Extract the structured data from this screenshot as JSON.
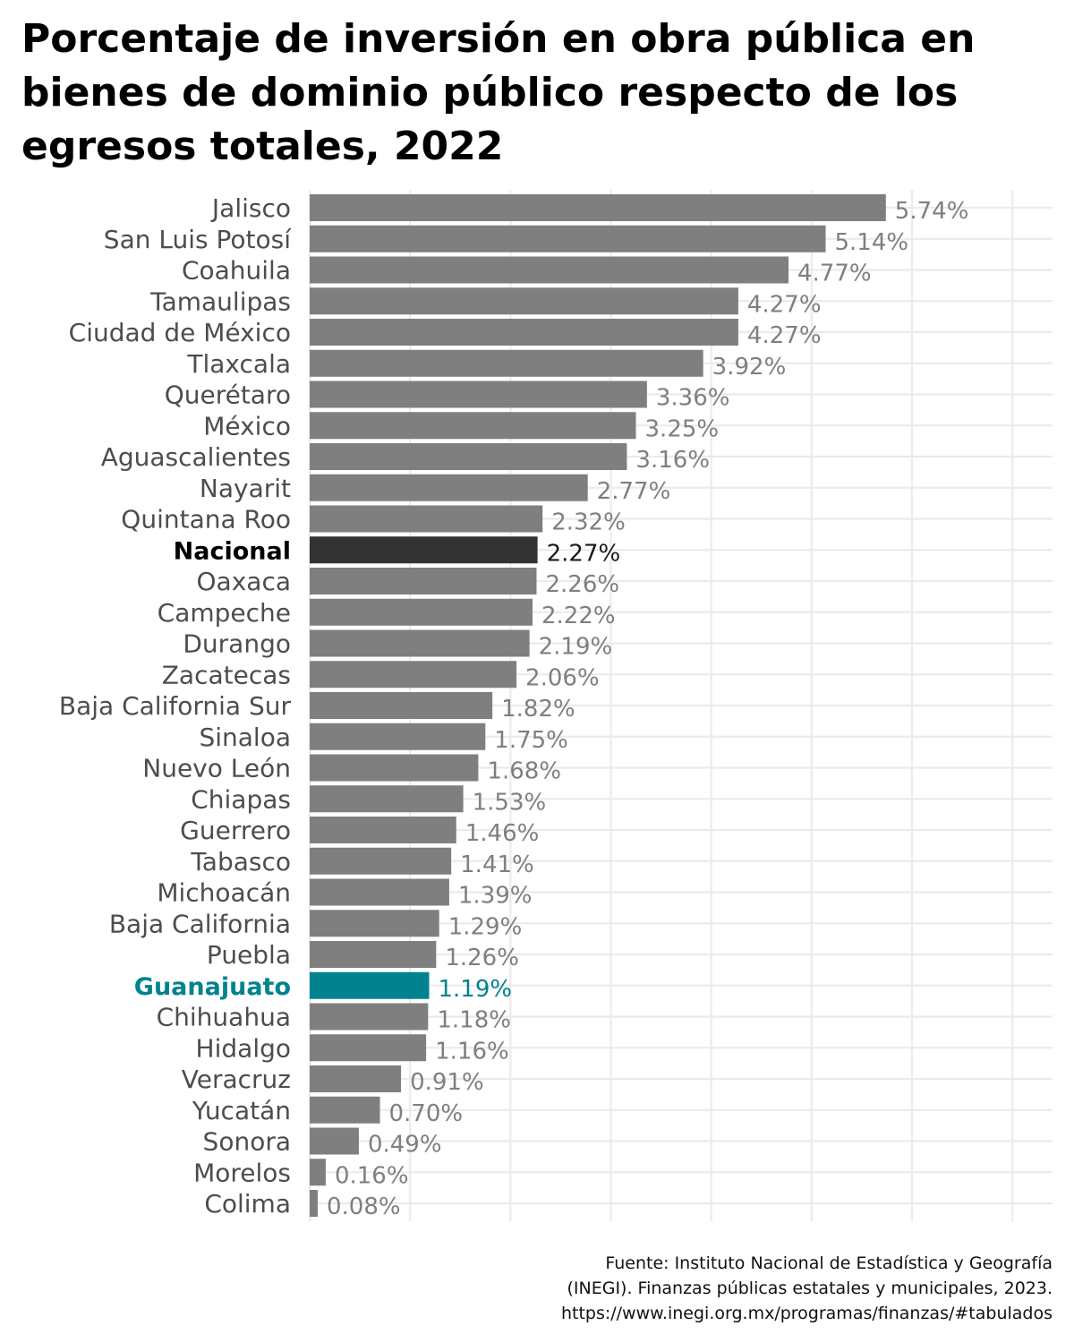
{
  "title": "Porcentaje de inversión en obra pública en bienes de dominio público respecto de los egresos totales, 2022",
  "source": {
    "line1": "Fuente: Instituto Nacional de Estadística y Geografía",
    "line2": "(INEGI). Finanzas públicas estatales y municipales, 2023.",
    "line3": "https://www.inegi.org.mx/programas/finanzas/#tabulados"
  },
  "colors": {
    "default_bar": "#7f7f7f",
    "default_label": "#7f7f7f",
    "category_text": "#4d4d4d",
    "national": "#333333",
    "highlight": "#00838f",
    "grid": "#ebebeb"
  },
  "chart_data": {
    "type": "bar",
    "orientation": "horizontal",
    "title": "Porcentaje de inversión en obra pública en bienes de dominio público respecto de los egresos totales, 2022",
    "xlim": [
      0,
      7.4
    ],
    "grid": true,
    "unit": "%",
    "categories": [
      "Jalisco",
      "San Luis Potosí",
      "Coahuila",
      "Tamaulipas",
      "Ciudad de México",
      "Tlaxcala",
      "Querétaro",
      "México",
      "Aguascalientes",
      "Nayarit",
      "Quintana Roo",
      "Nacional",
      "Oaxaca",
      "Campeche",
      "Durango",
      "Zacatecas",
      "Baja California Sur",
      "Sinaloa",
      "Nuevo León",
      "Chiapas",
      "Guerrero",
      "Tabasco",
      "Michoacán",
      "Baja California",
      "Puebla",
      "Guanajuato",
      "Chihuahua",
      "Hidalgo",
      "Veracruz",
      "Yucatán",
      "Sonora",
      "Morelos",
      "Colima"
    ],
    "values": [
      5.74,
      5.14,
      4.77,
      4.27,
      4.27,
      3.92,
      3.36,
      3.25,
      3.16,
      2.77,
      2.32,
      2.27,
      2.26,
      2.22,
      2.19,
      2.06,
      1.82,
      1.75,
      1.68,
      1.53,
      1.46,
      1.41,
      1.39,
      1.29,
      1.26,
      1.19,
      1.18,
      1.16,
      0.91,
      0.7,
      0.49,
      0.16,
      0.08
    ],
    "labels": [
      "5.74%",
      "5.14%",
      "4.77%",
      "4.27%",
      "4.27%",
      "3.92%",
      "3.36%",
      "3.25%",
      "3.16%",
      "2.77%",
      "2.32%",
      "2.27%",
      "2.26%",
      "2.22%",
      "2.19%",
      "2.06%",
      "1.82%",
      "1.75%",
      "1.68%",
      "1.53%",
      "1.46%",
      "1.41%",
      "1.39%",
      "1.29%",
      "1.26%",
      "1.19%",
      "1.18%",
      "1.16%",
      "0.91%",
      "0.70%",
      "0.49%",
      "0.16%",
      "0.08%"
    ],
    "national_category": "Nacional",
    "highlight_category": "Guanajuato"
  }
}
